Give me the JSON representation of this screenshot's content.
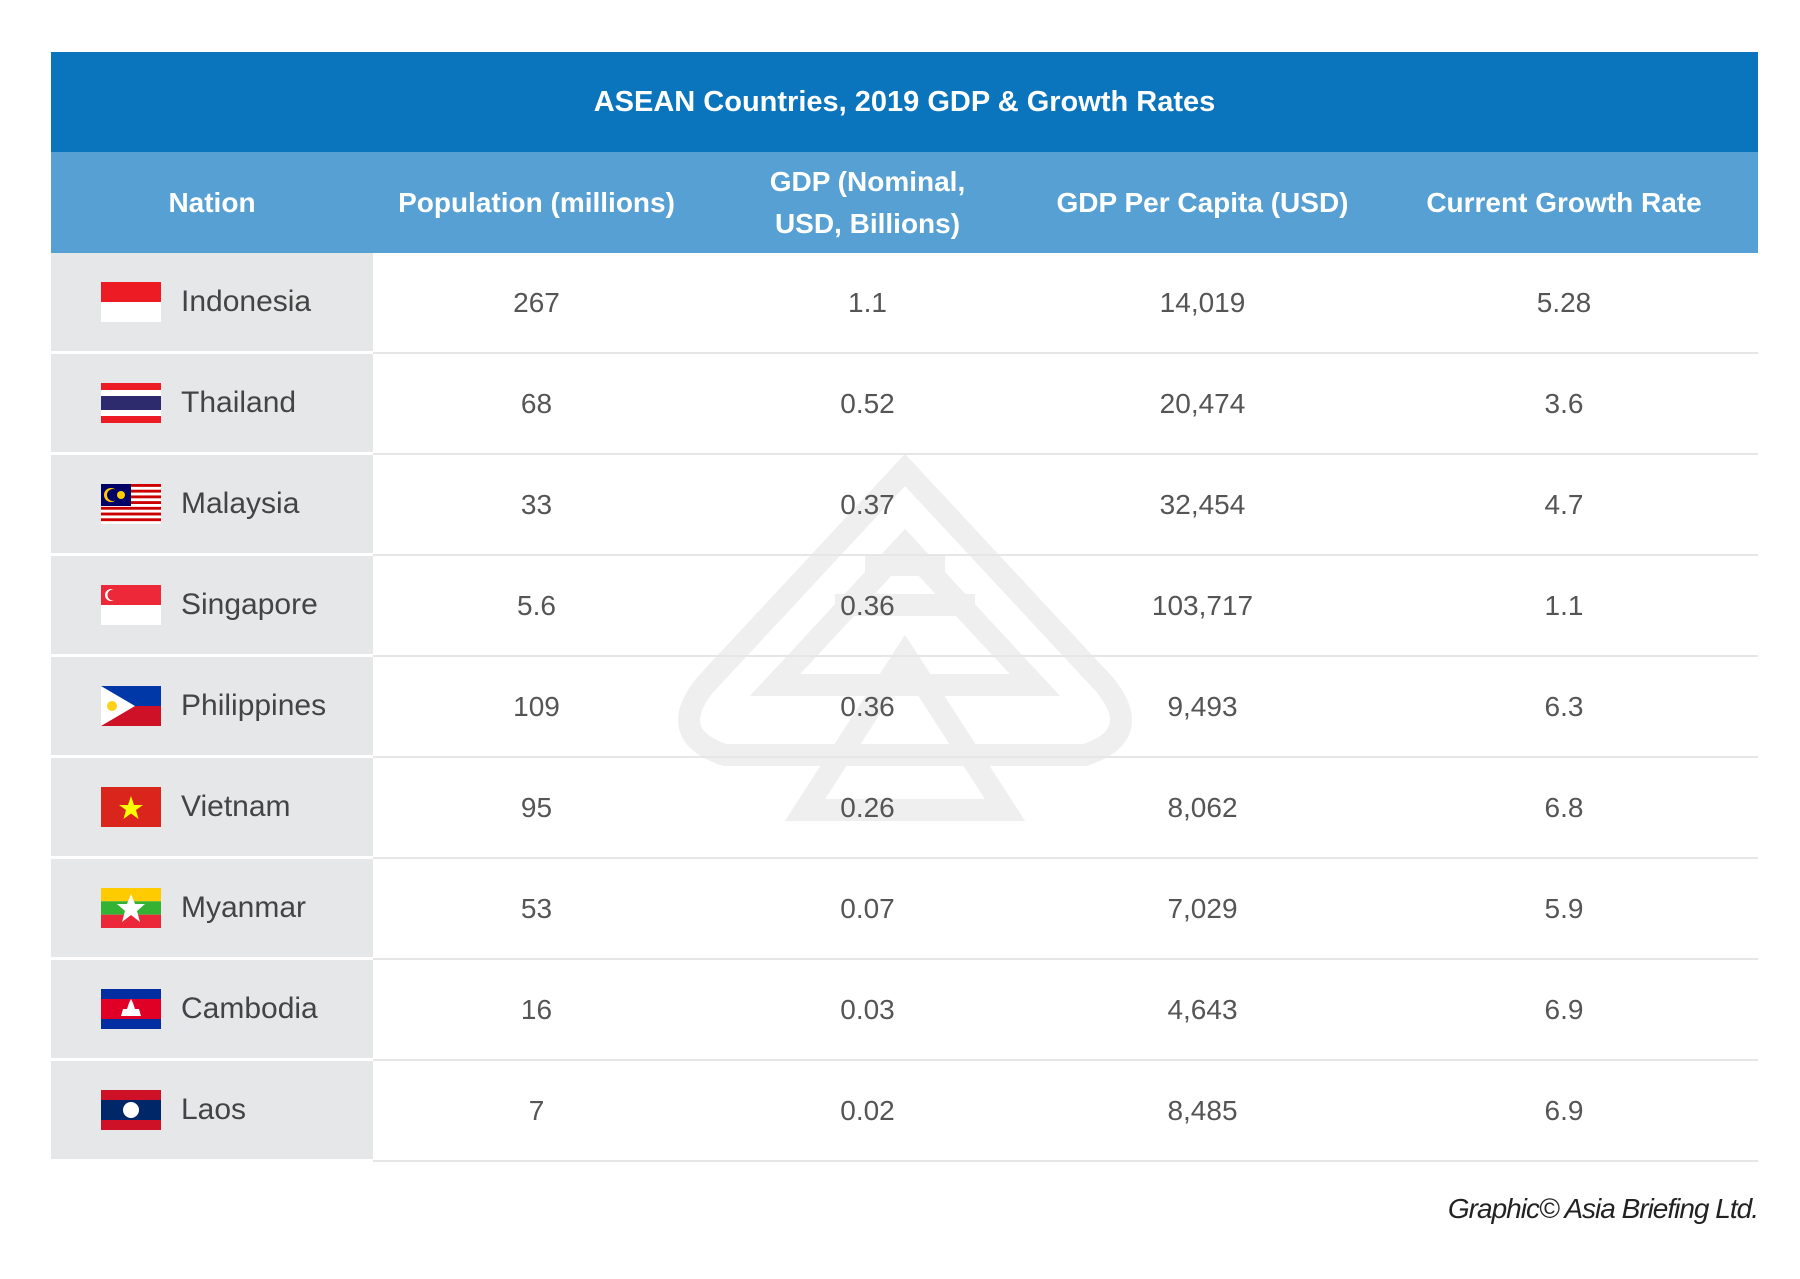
{
  "title": "ASEAN Countries,  2019 GDP & Growth Rates",
  "columns": [
    "Nation",
    "Population (millions)",
    "GDP  (Nominal, USD, Billions)",
    "GDP Per Capita (USD)",
    "Current Growth Rate"
  ],
  "rows": [
    {
      "nation": "Indonesia",
      "flag": "indonesia-flag",
      "population": "267",
      "gdp": "1.1",
      "per_capita": "14,019",
      "growth": "5.28"
    },
    {
      "nation": "Thailand",
      "flag": "thailand-flag",
      "population": "68",
      "gdp": "0.52",
      "per_capita": "20,474",
      "growth": "3.6"
    },
    {
      "nation": "Malaysia",
      "flag": "malaysia-flag",
      "population": "33",
      "gdp": "0.37",
      "per_capita": "32,454",
      "growth": "4.7"
    },
    {
      "nation": "Singapore",
      "flag": "singapore-flag",
      "population": "5.6",
      "gdp": "0.36",
      "per_capita": "103,717",
      "growth": "1.1"
    },
    {
      "nation": "Philippines",
      "flag": "philippines-flag",
      "population": "109",
      "gdp": "0.36",
      "per_capita": "9,493",
      "growth": "6.3"
    },
    {
      "nation": "Vietnam",
      "flag": "vietnam-flag",
      "population": "95",
      "gdp": "0.26",
      "per_capita": "8,062",
      "growth": "6.8"
    },
    {
      "nation": "Myanmar",
      "flag": "myanmar-flag",
      "population": "53",
      "gdp": "0.07",
      "per_capita": "7,029",
      "growth": "5.9"
    },
    {
      "nation": "Cambodia",
      "flag": "cambodia-flag",
      "population": "16",
      "gdp": "0.03",
      "per_capita": "4,643",
      "growth": "6.9"
    },
    {
      "nation": "Laos",
      "flag": "laos-flag",
      "population": "7",
      "gdp": "0.02",
      "per_capita": "8,485",
      "growth": "6.9"
    }
  ],
  "credit": "Graphic© Asia Briefing Ltd.",
  "colors": {
    "title_bar": "#0a74bc",
    "header_bar": "#56a0d3",
    "nation_column": "#e6e7e8"
  }
}
